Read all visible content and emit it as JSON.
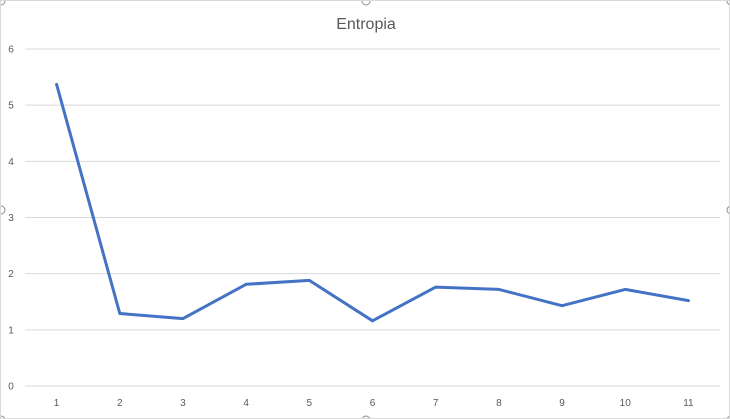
{
  "chart_data": {
    "type": "line",
    "title": "Entropia",
    "xlabel": "",
    "ylabel": "",
    "categories": [
      "1",
      "2",
      "3",
      "4",
      "5",
      "6",
      "7",
      "8",
      "9",
      "10",
      "11"
    ],
    "series": [
      {
        "values": [
          5.37,
          1.29,
          1.2,
          1.81,
          1.88,
          1.16,
          1.76,
          1.72,
          1.43,
          1.72,
          1.52
        ],
        "color": "#4472C4"
      }
    ],
    "ylim": [
      0,
      6
    ],
    "yticks": [
      "0",
      "1",
      "2",
      "3",
      "4",
      "5",
      "6"
    ],
    "grid": true,
    "legend": "none"
  }
}
